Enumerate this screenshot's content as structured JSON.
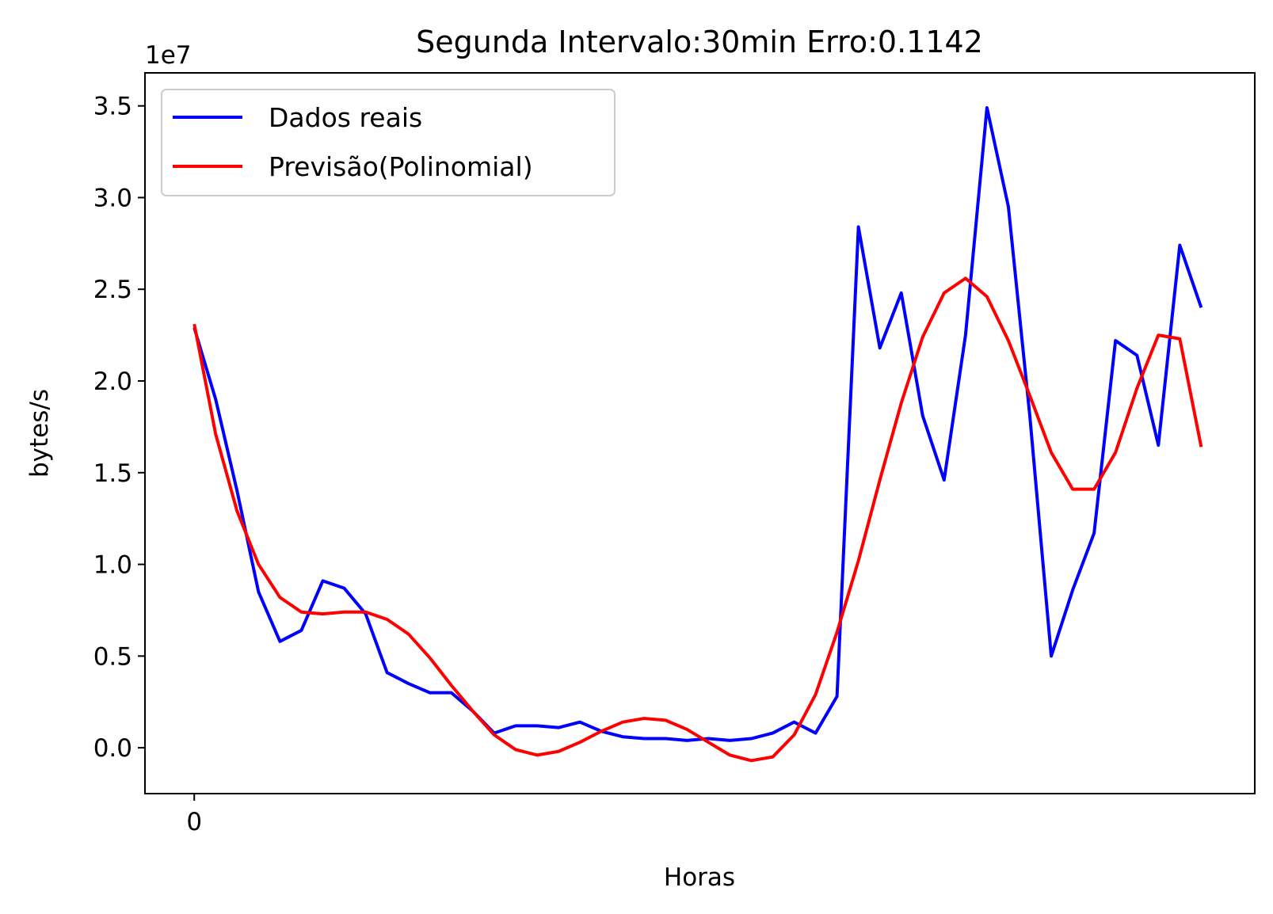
{
  "chart_data": {
    "type": "line",
    "title": "Segunda Intervalo:30min Erro:0.1142",
    "xlabel": "Horas",
    "ylabel": "bytes/s",
    "y_offset_label": "1e7",
    "y_multiplier": 10000000,
    "ylim": [
      -0.25,
      3.68
    ],
    "y_ticks": [
      0.0,
      0.5,
      1.0,
      1.5,
      2.0,
      2.5,
      3.0,
      3.5
    ],
    "y_tick_labels": [
      "0.0",
      "0.5",
      "1.0",
      "1.5",
      "2.0",
      "2.5",
      "3.0",
      "3.5"
    ],
    "xlim": [
      -2.3,
      49.5
    ],
    "x_ticks": [
      0
    ],
    "x_tick_labels": [
      "0"
    ],
    "grid": false,
    "legend_position": "top-left",
    "x": [
      0,
      1,
      2,
      3,
      4,
      5,
      6,
      7,
      8,
      9,
      10,
      11,
      12,
      13,
      14,
      15,
      16,
      17,
      18,
      19,
      20,
      21,
      22,
      23,
      24,
      25,
      26,
      27,
      28,
      29,
      30,
      31,
      32,
      33,
      34,
      35,
      36,
      37,
      38,
      39,
      40,
      41,
      42,
      43,
      44,
      45,
      46,
      47
    ],
    "series": [
      {
        "name": "Dados reais",
        "color": "#0000ff",
        "values": [
          2.29,
          1.9,
          1.4,
          0.85,
          0.58,
          0.64,
          0.91,
          0.87,
          0.73,
          0.41,
          0.35,
          0.3,
          0.3,
          0.2,
          0.08,
          0.12,
          0.12,
          0.11,
          0.14,
          0.09,
          0.06,
          0.05,
          0.05,
          0.04,
          0.05,
          0.04,
          0.05,
          0.08,
          0.14,
          0.08,
          0.28,
          2.84,
          2.18,
          2.48,
          1.81,
          1.46,
          2.25,
          3.49,
          2.95,
          1.81,
          0.5,
          0.86,
          1.17,
          2.22,
          2.14,
          1.65,
          2.74,
          2.4
        ]
      },
      {
        "name": "Previsão(Polinomial)",
        "color": "#ff0000",
        "values": [
          2.31,
          1.71,
          1.29,
          1.0,
          0.82,
          0.74,
          0.73,
          0.74,
          0.74,
          0.7,
          0.62,
          0.49,
          0.34,
          0.2,
          0.07,
          -0.01,
          -0.04,
          -0.02,
          0.03,
          0.09,
          0.14,
          0.16,
          0.15,
          0.1,
          0.03,
          -0.04,
          -0.07,
          -0.05,
          0.07,
          0.29,
          0.63,
          1.02,
          1.46,
          1.88,
          2.24,
          2.48,
          2.56,
          2.46,
          2.22,
          1.92,
          1.61,
          1.41,
          1.41,
          1.61,
          1.96,
          2.25,
          2.23,
          1.64
        ]
      }
    ]
  }
}
